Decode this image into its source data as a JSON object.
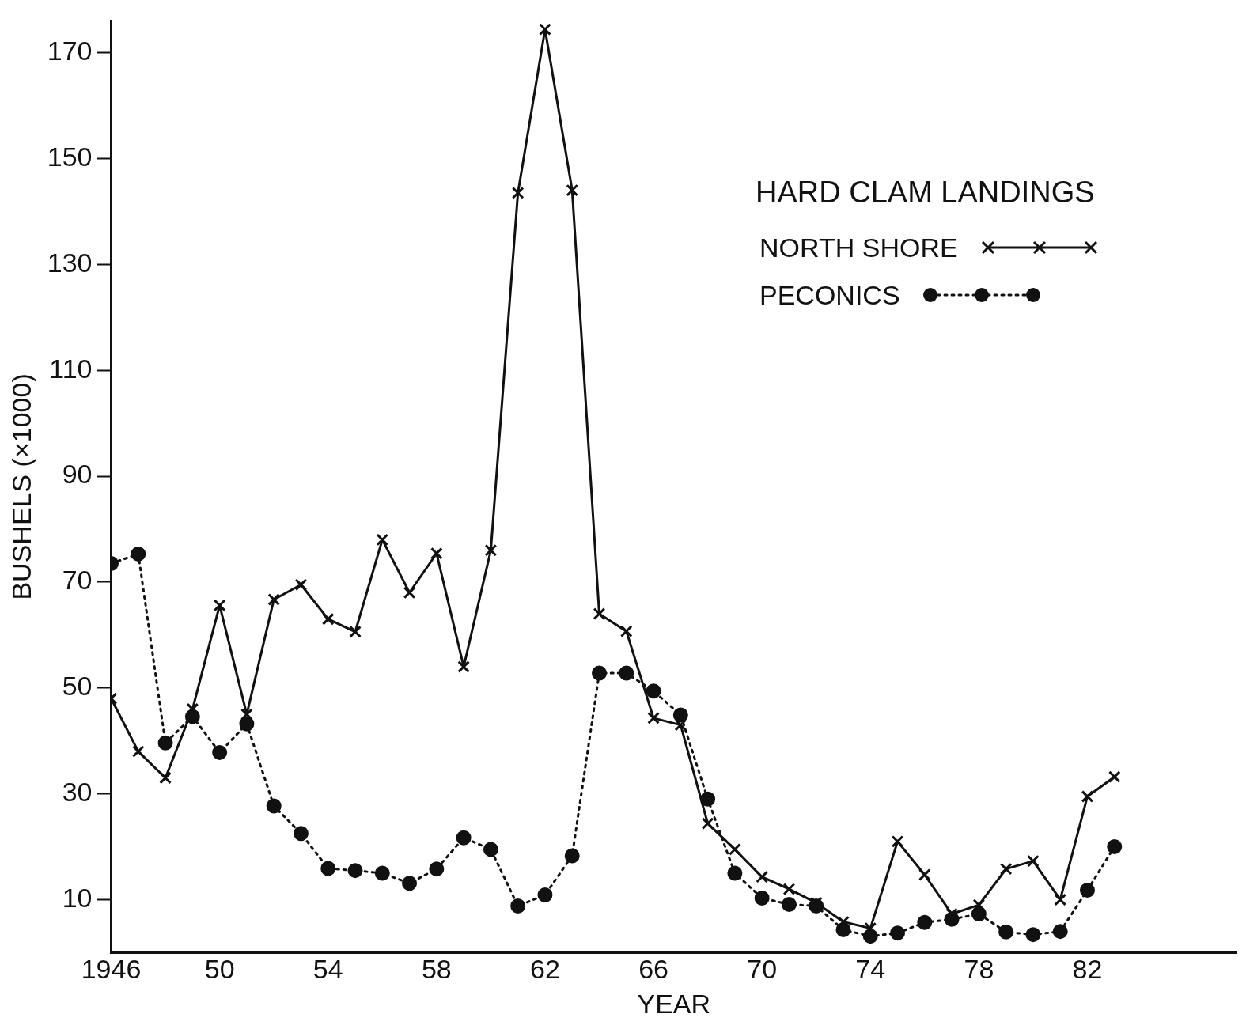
{
  "chart_data": {
    "type": "line",
    "xlabel": "YEAR",
    "ylabel": "BUSHELS (×1000)",
    "legend_title": "HARD CLAM LANDINGS",
    "legend": "top right",
    "grid": false,
    "x": [
      1946,
      1947,
      1948,
      1949,
      1950,
      1951,
      1952,
      1953,
      1954,
      1955,
      1956,
      1957,
      1958,
      1959,
      1960,
      1961,
      1962,
      1963,
      1964,
      1965,
      1966,
      1967,
      1968,
      1969,
      1970,
      1971,
      1972,
      1973,
      1974,
      1975,
      1976,
      1977,
      1978,
      1979,
      1980,
      1981,
      1982,
      1983
    ],
    "xlim": [
      1946,
      1987.5
    ],
    "xticks": [
      {
        "value": 1946,
        "label": "1946"
      },
      {
        "value": 1950,
        "label": "50"
      },
      {
        "value": 1954,
        "label": "54"
      },
      {
        "value": 1958,
        "label": "58"
      },
      {
        "value": 1962,
        "label": "62"
      },
      {
        "value": 1966,
        "label": "66"
      },
      {
        "value": 1970,
        "label": "70"
      },
      {
        "value": 1974,
        "label": "74"
      },
      {
        "value": 1978,
        "label": "78"
      },
      {
        "value": 1982,
        "label": "82"
      }
    ],
    "ylim": [
      0,
      176
    ],
    "yticks": [
      10,
      30,
      50,
      70,
      90,
      110,
      130,
      150,
      170
    ],
    "series": [
      {
        "name": "NORTH SHORE",
        "color": "#111111",
        "marker": "cross",
        "line_style": "solid",
        "values": [
          48,
          38,
          33,
          46,
          65.6,
          45,
          66.7,
          69.5,
          63,
          60.6,
          78,
          68,
          75.4,
          54,
          76,
          143.5,
          174.4,
          144,
          64,
          60.7,
          44.3,
          43,
          24.4,
          19.5,
          14.3,
          12,
          9.4,
          5.8,
          4.6,
          21,
          14.7,
          7.3,
          9,
          15.8,
          17.3,
          10,
          29.5,
          33.2
        ]
      },
      {
        "name": "PECONICS",
        "color": "#111111",
        "marker": "circle",
        "line_style": "dotted",
        "values": [
          73.5,
          75.3,
          39.6,
          44.6,
          37.8,
          43.2,
          27.7,
          22.5,
          15.9,
          15.5,
          15,
          13.1,
          15.8,
          21.7,
          19.5,
          8.8,
          10.9,
          18.3,
          52.8,
          52.8,
          49.4,
          44.9,
          29,
          15,
          10.3,
          9.1,
          8.8,
          4.3,
          3.1,
          3.7,
          5.7,
          6.3,
          7.3,
          3.9,
          3.4,
          4,
          11.8,
          20
        ]
      }
    ]
  }
}
